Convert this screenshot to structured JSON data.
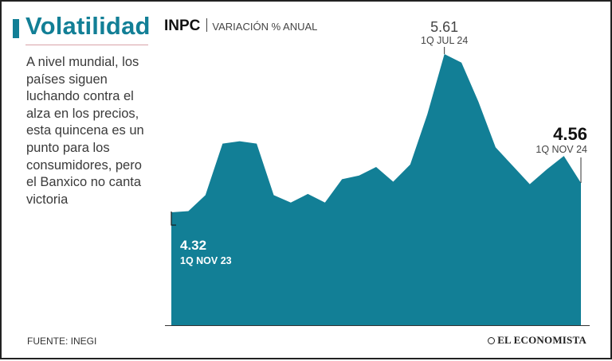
{
  "header": {
    "title": "Volatilidad",
    "body": "A nivel mundial, los países siguen luchando contra el alza en los precios, esta quincena es un punto para los consumidores, pero el Banxico no canta victoria"
  },
  "footer": {
    "source": "FUENTE: INEGI",
    "brand": "EL ECONOMISTA"
  },
  "colors": {
    "accent": "#127f96",
    "area": "#127f96",
    "frame": "#222222"
  },
  "chart_data": {
    "type": "area",
    "title": "INPC",
    "subtitle": "VARIACIÓN % ANUAL",
    "series": [
      {
        "values": [
          4.32,
          4.33,
          4.46,
          4.88,
          4.9,
          4.88,
          4.46,
          4.4,
          4.47,
          4.4,
          4.59,
          4.62,
          4.69,
          4.57,
          4.71,
          5.12,
          5.61,
          5.54,
          5.22,
          4.85,
          4.7,
          4.55,
          4.67,
          4.78,
          4.56
        ]
      }
    ],
    "ylim": [
      3.4,
      5.61
    ],
    "annotations": [
      {
        "index": 0,
        "value": "4.32",
        "label": "1Q NOV 23"
      },
      {
        "index": 16,
        "value": "5.61",
        "label": "1Q JUL 24"
      },
      {
        "index": 24,
        "value": "4.56",
        "label": "1Q NOV 24"
      }
    ]
  }
}
